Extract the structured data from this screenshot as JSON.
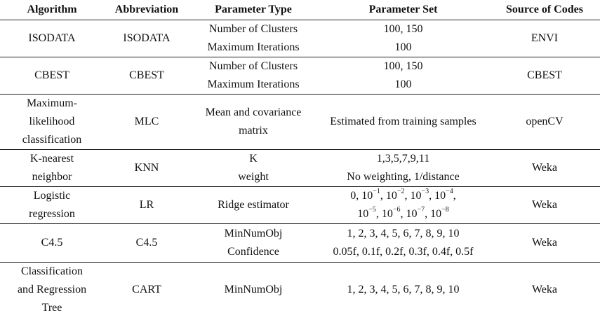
{
  "headers": {
    "algorithm": "Algorithm",
    "abbreviation": "Abbreviation",
    "parameter_type": "Parameter Type",
    "parameter_set": "Parameter Set",
    "source": "Source of Codes"
  },
  "rows": [
    {
      "algorithm": [
        "ISODATA"
      ],
      "abbreviation": "ISODATA",
      "param_type": [
        "Number of Clusters",
        "Maximum Iterations"
      ],
      "param_set": [
        "100, 150",
        "100"
      ],
      "source": "ENVI"
    },
    {
      "algorithm": [
        "CBEST"
      ],
      "abbreviation": "CBEST",
      "param_type": [
        "Number of Clusters",
        "Maximum Iterations"
      ],
      "param_set": [
        "100, 150",
        "100"
      ],
      "source": "CBEST"
    },
    {
      "algorithm": [
        "Maximum-",
        "likelihood",
        "classification"
      ],
      "abbreviation": "MLC",
      "param_type": [
        "Mean and covariance",
        "matrix"
      ],
      "param_set": [
        "Estimated from training samples"
      ],
      "source": "openCV"
    },
    {
      "algorithm": [
        "K-nearest",
        "neighbor"
      ],
      "abbreviation": "KNN",
      "param_type": [
        "K",
        "weight"
      ],
      "param_set": [
        "1,3,5,7,9,11",
        "No weighting, 1/distance"
      ],
      "source": "Weka"
    },
    {
      "algorithm": [
        "Logistic",
        "regression"
      ],
      "abbreviation": "LR",
      "param_type": [
        "Ridge estimator"
      ],
      "ridge": {
        "base": "10",
        "line1_first": "0",
        "line1_exps": [
          "−1",
          "−2",
          "−3",
          "−4"
        ],
        "line2_exps": [
          "−5",
          "−6",
          "−7",
          "−8"
        ]
      },
      "source": "Weka"
    },
    {
      "algorithm": [
        "C4.5"
      ],
      "abbreviation": "C4.5",
      "param_type": [
        "MinNumObj",
        "Confidence"
      ],
      "param_set": [
        "1, 2, 3, 4, 5, 6, 7, 8, 9, 10",
        "0.05f, 0.1f, 0.2f, 0.3f, 0.4f, 0.5f"
      ],
      "source": "Weka"
    },
    {
      "algorithm": [
        "Classification",
        "and Regression",
        "Tree"
      ],
      "abbreviation": "CART",
      "param_type": [
        "MinNumObj"
      ],
      "param_set": [
        "1, 2, 3, 4, 5, 6, 7, 8, 9, 10"
      ],
      "source": "Weka"
    }
  ]
}
